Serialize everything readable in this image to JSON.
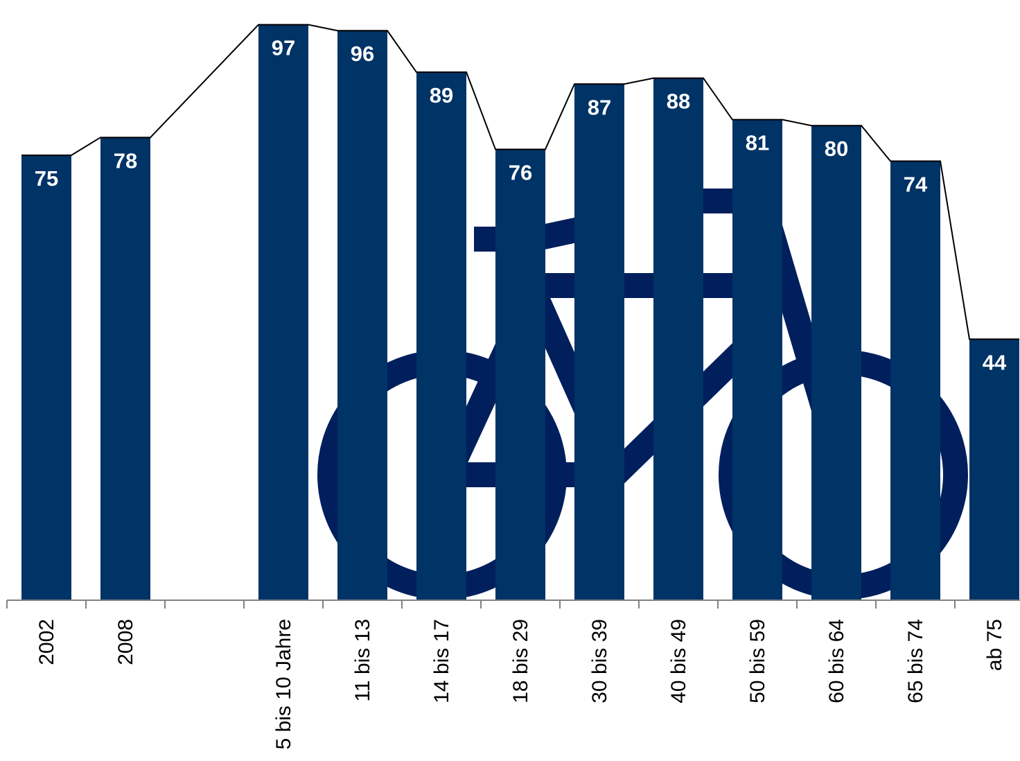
{
  "chart_data": {
    "type": "bar",
    "title": "",
    "xlabel": "",
    "ylabel": "",
    "ylim": [
      0,
      100
    ],
    "grid": false,
    "categories": [
      "2002",
      "2008",
      "",
      "5 bis 10 Jahre",
      "11 bis 13",
      "14 bis 17",
      "18 bis 29",
      "30 bis 39",
      "40 bis 49",
      "50 bis 59",
      "60 bis 64",
      "65 bis 74",
      "ab 75"
    ],
    "values": [
      75,
      78,
      null,
      97,
      96,
      89,
      76,
      87,
      88,
      81,
      80,
      74,
      44
    ],
    "data_labels": [
      "75",
      "78",
      "",
      "97",
      "96",
      "89",
      "76",
      "87",
      "88",
      "81",
      "80",
      "74",
      "44"
    ],
    "trend_line": true,
    "background_icon": "bicycle-icon",
    "colors": {
      "bar": "#003366",
      "icon": "#001f5c",
      "line": "#000000",
      "label": "#ffffff"
    }
  }
}
